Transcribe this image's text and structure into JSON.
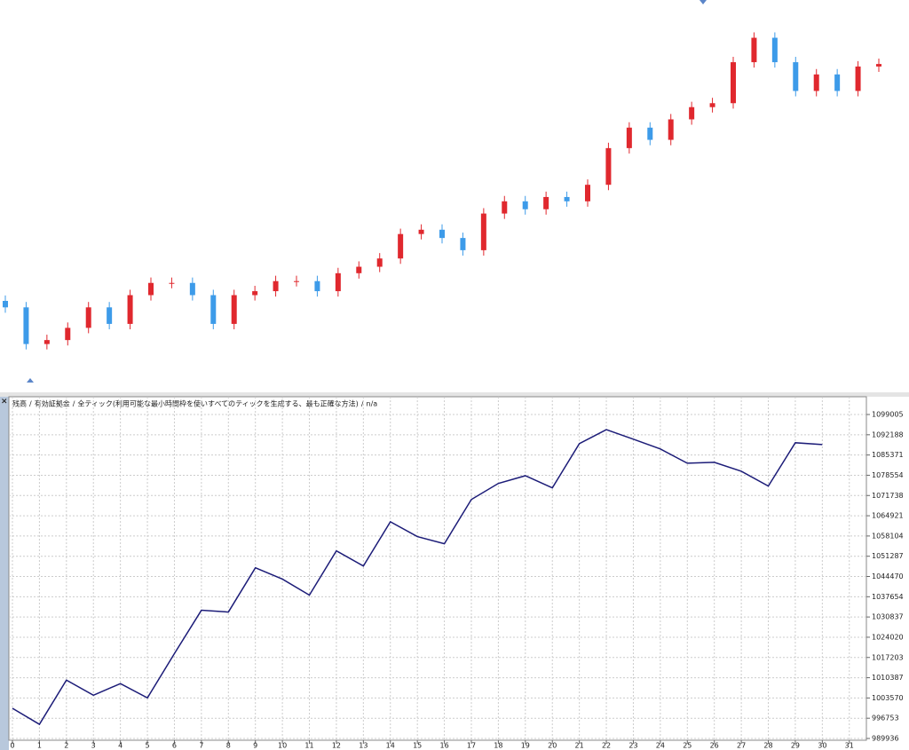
{
  "chart_data": [
    {
      "type": "candlestick",
      "up_color": "#e0282e",
      "down_color": "#3d9be9",
      "ylim": [
        0,
        100
      ],
      "open": [
        20.0,
        18.2,
        8.0,
        9.1,
        12.5,
        18.2,
        13.6,
        21.6,
        25.0,
        25.0,
        21.6,
        13.6,
        21.6,
        22.7,
        25.5,
        25.5,
        22.7,
        27.7,
        29.5,
        31.8,
        38.6,
        39.8,
        37.5,
        34.1,
        44.3,
        47.7,
        45.5,
        48.9,
        47.7,
        52.3,
        62.5,
        68.2,
        64.8,
        70.5,
        73.9,
        75.0,
        86.4,
        93.2,
        86.4,
        78.4,
        83.0,
        78.4,
        85.2
      ],
      "high": [
        21.5,
        19.7,
        10.6,
        14.0,
        19.7,
        19.7,
        23.1,
        26.5,
        26.5,
        26.5,
        23.1,
        23.1,
        24.2,
        27.0,
        27.0,
        27.0,
        29.2,
        31.0,
        33.3,
        40.1,
        41.3,
        41.3,
        39.0,
        45.8,
        49.2,
        49.2,
        50.4,
        50.4,
        53.8,
        64.0,
        69.7,
        69.7,
        72.0,
        75.4,
        76.5,
        87.9,
        94.7,
        94.7,
        87.9,
        84.5,
        84.5,
        86.7,
        87.4
      ],
      "low": [
        16.7,
        6.5,
        6.5,
        7.6,
        11.0,
        12.1,
        12.1,
        20.1,
        23.5,
        20.1,
        12.1,
        12.1,
        20.1,
        21.2,
        24.0,
        21.2,
        21.2,
        26.2,
        28.0,
        30.3,
        37.1,
        36.0,
        32.6,
        32.6,
        42.8,
        44.0,
        44.0,
        46.2,
        46.2,
        50.8,
        61.0,
        63.3,
        63.3,
        69.0,
        72.4,
        73.5,
        84.9,
        84.9,
        76.9,
        76.9,
        76.9,
        76.9,
        83.7
      ],
      "close": [
        18.2,
        8.0,
        9.1,
        12.5,
        18.2,
        13.6,
        21.6,
        25.0,
        25.0,
        21.6,
        13.6,
        21.6,
        22.7,
        25.5,
        25.5,
        22.7,
        27.7,
        29.5,
        31.8,
        38.6,
        39.8,
        37.5,
        34.1,
        44.3,
        47.7,
        45.5,
        48.9,
        47.7,
        52.3,
        62.5,
        68.2,
        64.8,
        70.5,
        73.9,
        75.0,
        86.4,
        93.2,
        86.4,
        78.4,
        83.0,
        78.4,
        85.2,
        85.9
      ]
    },
    {
      "type": "line",
      "close_button": "×",
      "legend": [
        {
          "text": "残高",
          "color": "#1f3fbf"
        },
        {
          "text": "有効証拠金",
          "color": "#1a9a1a"
        }
      ],
      "separator": "/",
      "subtitle": "全ティック(利用可能な最小時間枠を使いすべてのティックを生成する、最も正確な方法)",
      "note": "n/a",
      "x": [
        0,
        1,
        2,
        3,
        4,
        5,
        6,
        7,
        8,
        9,
        10,
        11,
        12,
        13,
        14,
        15,
        16,
        17,
        18,
        19,
        20,
        21,
        22,
        23,
        24,
        25,
        26,
        27,
        28,
        29,
        30
      ],
      "series": [
        {
          "name": "残高",
          "color": "#1c1c78",
          "values": [
            1000100,
            994700,
            1009600,
            1004500,
            1008400,
            1003600,
            1018500,
            1033100,
            1032500,
            1047400,
            1043600,
            1038200,
            1053100,
            1048000,
            1062900,
            1057900,
            1055500,
            1070400,
            1075800,
            1078400,
            1074300,
            1089200,
            1093900,
            1090700,
            1087400,
            1082600,
            1082900,
            1079900,
            1074900,
            1089500,
            1088900
          ]
        }
      ],
      "xlim": [
        0,
        31.6
      ],
      "xticks": [
        0,
        1,
        2,
        3,
        4,
        5,
        6,
        7,
        8,
        9,
        10,
        11,
        12,
        13,
        14,
        15,
        16,
        17,
        18,
        19,
        20,
        21,
        22,
        23,
        24,
        25,
        26,
        27,
        28,
        29,
        30,
        31
      ],
      "ylim": [
        989936,
        1101400
      ],
      "yticks": [
        989936,
        996753,
        1003570,
        1010387,
        1017203,
        1024020,
        1030837,
        1037654,
        1044470,
        1051287,
        1058104,
        1064921,
        1071738,
        1078554,
        1085371,
        1092188,
        1099005
      ],
      "grid": true
    }
  ]
}
